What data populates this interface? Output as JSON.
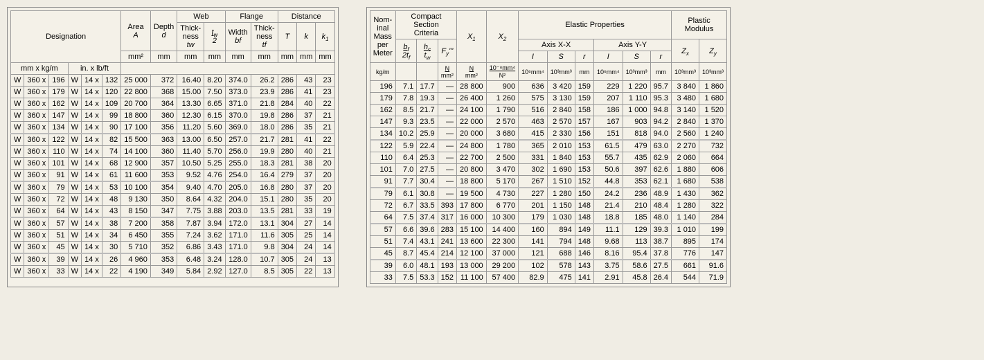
{
  "left": {
    "headers": {
      "designation": "Designation",
      "area": "Area",
      "area_sym": "A",
      "depth": "Depth",
      "depth_sym": "d",
      "web": "Web",
      "flange": "Flange",
      "distance": "Distance",
      "thick": "Thick-",
      "ness": "ness",
      "tw": "tw",
      "tw2": "tw / 2",
      "width": "Width",
      "bf": "bf",
      "tf": "tf",
      "T": "T",
      "k": "k",
      "k1": "k1",
      "u_metric": "mm  x  kg/m",
      "u_imp": "in.  x  lb/ft",
      "mm2": "mm²",
      "mm": "mm"
    },
    "groups": [
      [
        [
          "W",
          "360 x",
          "196",
          "W",
          "14 x",
          "132",
          "25 000",
          "372",
          "16.40",
          "8.20",
          "374.0",
          "26.2",
          "286",
          "43",
          "23"
        ],
        [
          "W",
          "360 x",
          "179",
          "W",
          "14 x",
          "120",
          "22 800",
          "368",
          "15.00",
          "7.50",
          "373.0",
          "23.9",
          "286",
          "41",
          "23"
        ],
        [
          "W",
          "360 x",
          "162",
          "W",
          "14 x",
          "109",
          "20 700",
          "364",
          "13.30",
          "6.65",
          "371.0",
          "21.8",
          "284",
          "40",
          "22"
        ],
        [
          "W",
          "360 x",
          "147",
          "W",
          "14 x",
          "99",
          "18 800",
          "360",
          "12.30",
          "6.15",
          "370.0",
          "19.8",
          "286",
          "37",
          "21"
        ],
        [
          "W",
          "360 x",
          "134",
          "W",
          "14 x",
          "90",
          "17 100",
          "356",
          "11.20",
          "5.60",
          "369.0",
          "18.0",
          "286",
          "35",
          "21"
        ]
      ],
      [
        [
          "W",
          "360 x",
          "122",
          "W",
          "14 x",
          "82",
          "15 500",
          "363",
          "13.00",
          "6.50",
          "257.0",
          "21.7",
          "281",
          "41",
          "22"
        ],
        [
          "W",
          "360 x",
          "110",
          "W",
          "14 x",
          "74",
          "14 100",
          "360",
          "11.40",
          "5.70",
          "256.0",
          "19.9",
          "280",
          "40",
          "21"
        ],
        [
          "W",
          "360 x",
          "101",
          "W",
          "14 x",
          "68",
          "12 900",
          "357",
          "10.50",
          "5.25",
          "255.0",
          "18.3",
          "281",
          "38",
          "20"
        ],
        [
          "W",
          "360 x",
          "91",
          "W",
          "14 x",
          "61",
          "11 600",
          "353",
          "9.52",
          "4.76",
          "254.0",
          "16.4",
          "279",
          "37",
          "20"
        ]
      ],
      [
        [
          "W",
          "360 x",
          "79",
          "W",
          "14 x",
          "53",
          "10 100",
          "354",
          "9.40",
          "4.70",
          "205.0",
          "16.8",
          "280",
          "37",
          "20"
        ],
        [
          "W",
          "360 x",
          "72",
          "W",
          "14 x",
          "48",
          "9 130",
          "350",
          "8.64",
          "4.32",
          "204.0",
          "15.1",
          "280",
          "35",
          "20"
        ],
        [
          "W",
          "360 x",
          "64",
          "W",
          "14 x",
          "43",
          "8 150",
          "347",
          "7.75",
          "3.88",
          "203.0",
          "13.5",
          "281",
          "33",
          "19"
        ]
      ],
      [
        [
          "W",
          "360 x",
          "57",
          "W",
          "14 x",
          "38",
          "7 200",
          "358",
          "7.87",
          "3.94",
          "172.0",
          "13.1",
          "304",
          "27",
          "14"
        ],
        [
          "W",
          "360 x",
          "51",
          "W",
          "14 x",
          "34",
          "6 450",
          "355",
          "7.24",
          "3.62",
          "171.0",
          "11.6",
          "305",
          "25",
          "14"
        ],
        [
          "W",
          "360 x",
          "45",
          "W",
          "14 x",
          "30",
          "5 710",
          "352",
          "6.86",
          "3.43",
          "171.0",
          "9.8",
          "304",
          "24",
          "14"
        ]
      ],
      [
        [
          "W",
          "360 x",
          "39",
          "W",
          "14 x",
          "26",
          "4 960",
          "353",
          "6.48",
          "3.24",
          "128.0",
          "10.7",
          "305",
          "24",
          "13"
        ],
        [
          "W",
          "360 x",
          "33",
          "W",
          "14 x",
          "22",
          "4 190",
          "349",
          "5.84",
          "2.92",
          "127.0",
          "8.5",
          "305",
          "22",
          "13"
        ]
      ]
    ]
  },
  "right": {
    "headers": {
      "nominal": "Nom-inal Mass per Meter",
      "compact": "Compact Section Criteria",
      "elastic": "Elastic  Properties",
      "plastic": "Plastic Modulus",
      "axisxx": "Axis X-X",
      "axisyy": "Axis Y-Y",
      "X1": "X1",
      "X2": "X2",
      "I": "I",
      "S": "S",
      "r": "r",
      "Zx": "Zx",
      "Zy": "Zy",
      "bf2tf": "bf / 2tf",
      "hctw": "hc / tw",
      "Fy3": "Fy'''",
      "kgm": "kg/m",
      "N": "N",
      "Nmm2": "N / mm²",
      "x2u": "10⁻⁸mm⁴ / N²",
      "e6mm4": "10⁶mm⁴",
      "e3mm3": "10³mm³",
      "mm": "mm"
    },
    "groups": [
      [
        [
          "196",
          "7.1",
          "17.7",
          "—",
          "28 800",
          "900",
          "636",
          "3 420",
          "159",
          "229",
          "1 220",
          "95.7",
          "3 840",
          "1 860"
        ],
        [
          "179",
          "7.8",
          "19.3",
          "—",
          "26 400",
          "1 260",
          "575",
          "3 130",
          "159",
          "207",
          "1 110",
          "95.3",
          "3 480",
          "1 680"
        ],
        [
          "162",
          "8.5",
          "21.7",
          "—",
          "24 100",
          "1 790",
          "516",
          "2 840",
          "158",
          "186",
          "1 000",
          "94.8",
          "3 140",
          "1 520"
        ],
        [
          "147",
          "9.3",
          "23.5",
          "—",
          "22 000",
          "2 570",
          "463",
          "2 570",
          "157",
          "167",
          "903",
          "94.2",
          "2 840",
          "1 370"
        ],
        [
          "134",
          "10.2",
          "25.9",
          "—",
          "20 000",
          "3 680",
          "415",
          "2 330",
          "156",
          "151",
          "818",
          "94.0",
          "2 560",
          "1 240"
        ]
      ],
      [
        [
          "122",
          "5.9",
          "22.4",
          "—",
          "24 800",
          "1 780",
          "365",
          "2 010",
          "153",
          "61.5",
          "479",
          "63.0",
          "2 270",
          "732"
        ],
        [
          "110",
          "6.4",
          "25.3",
          "—",
          "22 700",
          "2 500",
          "331",
          "1 840",
          "153",
          "55.7",
          "435",
          "62.9",
          "2 060",
          "664"
        ],
        [
          "101",
          "7.0",
          "27.5",
          "—",
          "20 800",
          "3 470",
          "302",
          "1 690",
          "153",
          "50.6",
          "397",
          "62.6",
          "1 880",
          "606"
        ],
        [
          "91",
          "7.7",
          "30.4",
          "—",
          "18 800",
          "5 170",
          "267",
          "1 510",
          "152",
          "44.8",
          "353",
          "62.1",
          "1 680",
          "538"
        ]
      ],
      [
        [
          "79",
          "6.1",
          "30.8",
          "—",
          "19 500",
          "4 730",
          "227",
          "1 280",
          "150",
          "24.2",
          "236",
          "48.9",
          "1 430",
          "362"
        ],
        [
          "72",
          "6.7",
          "33.5",
          "393",
          "17 800",
          "6 770",
          "201",
          "1 150",
          "148",
          "21.4",
          "210",
          "48.4",
          "1 280",
          "322"
        ],
        [
          "64",
          "7.5",
          "37.4",
          "317",
          "16 000",
          "10 300",
          "179",
          "1 030",
          "148",
          "18.8",
          "185",
          "48.0",
          "1 140",
          "284"
        ]
      ],
      [
        [
          "57",
          "6.6",
          "39.6",
          "283",
          "15 100",
          "14 400",
          "160",
          "894",
          "149",
          "11.1",
          "129",
          "39.3",
          "1 010",
          "199"
        ],
        [
          "51",
          "7.4",
          "43.1",
          "241",
          "13 600",
          "22 300",
          "141",
          "794",
          "148",
          "9.68",
          "113",
          "38.7",
          "895",
          "174"
        ],
        [
          "45",
          "8.7",
          "45.4",
          "214",
          "12 100",
          "37 000",
          "121",
          "688",
          "146",
          "8.16",
          "95.4",
          "37.8",
          "776",
          "147"
        ]
      ],
      [
        [
          "39",
          "6.0",
          "48.1",
          "193",
          "13 000",
          "29 200",
          "102",
          "578",
          "143",
          "3.75",
          "58.6",
          "27.5",
          "661",
          "91.6"
        ],
        [
          "33",
          "7.5",
          "53.3",
          "152",
          "11 100",
          "57 400",
          "82.9",
          "475",
          "141",
          "2.91",
          "45.8",
          "26.4",
          "544",
          "71.9"
        ]
      ]
    ]
  }
}
